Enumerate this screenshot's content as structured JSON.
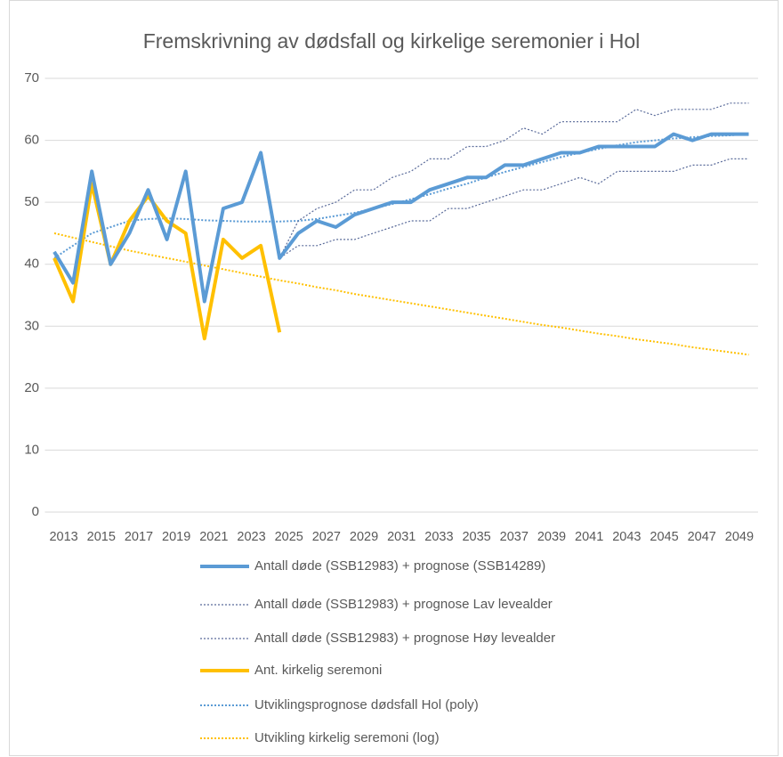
{
  "chart_data": {
    "type": "line",
    "title": "Fremskrivning av dødsfall og kirkelige seremonier i Hol",
    "categories": [
      "2013",
      null,
      "2015",
      null,
      "2017",
      null,
      "2019",
      null,
      "2021",
      null,
      "2023",
      null,
      "2025",
      null,
      "2027",
      null,
      "2029",
      null,
      "2031",
      null,
      "2033",
      null,
      "2035",
      null,
      "2037",
      null,
      "2039",
      null,
      "2041",
      null,
      "2043",
      null,
      "2045",
      null,
      "2047",
      null,
      "2049",
      null
    ],
    "ylim": [
      0,
      70
    ],
    "yticks": [
      0,
      10,
      20,
      30,
      40,
      50,
      60,
      70
    ],
    "grid": true,
    "legend": "bottom",
    "series": [
      {
        "name": "Antall døde (SSB12983) + prognose (SSB14289)",
        "color": "#5b9bd5",
        "line_style": "solid",
        "values": [
          42,
          37,
          55,
          40,
          45,
          52,
          44,
          55,
          34,
          49,
          50,
          58,
          41,
          45,
          47,
          46,
          48,
          49,
          50,
          50,
          52,
          53,
          54,
          54,
          56,
          56,
          57,
          58,
          58,
          59,
          59,
          59,
          59,
          61,
          60,
          61,
          61,
          61
        ]
      },
      {
        "name": "Antall døde (SSB12983) + prognose Lav levealder",
        "color": "#5a6b9a",
        "line_style": "dotted",
        "values": [
          42,
          37,
          55,
          40,
          45,
          52,
          44,
          55,
          34,
          49,
          50,
          58,
          41,
          47,
          49,
          50,
          52,
          52,
          54,
          55,
          57,
          57,
          59,
          59,
          60,
          62,
          61,
          63,
          63,
          63,
          63,
          65,
          64,
          65,
          65,
          65,
          66,
          66
        ]
      },
      {
        "name": "Antall døde (SSB12983) + prognose Høy levealder",
        "color": "#5a6b9a",
        "line_style": "dotted",
        "values": [
          42,
          37,
          55,
          40,
          45,
          52,
          44,
          55,
          34,
          49,
          50,
          58,
          41,
          43,
          43,
          44,
          44,
          45,
          46,
          47,
          47,
          49,
          49,
          50,
          51,
          52,
          52,
          53,
          54,
          53,
          55,
          55,
          55,
          55,
          56,
          56,
          57,
          57
        ]
      },
      {
        "name": "Ant. kirkelig seremoni",
        "color": "#ffc000",
        "line_style": "solid",
        "values": [
          41,
          34,
          53,
          40,
          47,
          51,
          47,
          45,
          28,
          44,
          41,
          43,
          29,
          null,
          null,
          null,
          null,
          null,
          null,
          null,
          null,
          null,
          null,
          null,
          null,
          null,
          null,
          null,
          null,
          null,
          null,
          null,
          null,
          null,
          null,
          null,
          null,
          null
        ]
      },
      {
        "name": "Utviklingsprognose dødsfall Hol (poly)",
        "color": "#5b9bd5",
        "line_style": "dotted",
        "values": [
          41,
          43,
          45,
          46,
          47,
          47.3,
          47.4,
          47.3,
          47.1,
          47,
          46.9,
          46.9,
          46.9,
          47,
          47.3,
          47.8,
          48.3,
          49,
          49.7,
          50.5,
          51.3,
          52.2,
          53,
          54,
          54.9,
          55.7,
          56.5,
          57.3,
          58,
          58.6,
          59.2,
          59.7,
          60,
          60.3,
          60.5,
          60.7,
          60.8,
          61
        ]
      },
      {
        "name": "Utvikling kirkelig seremoni (log)",
        "color": "#ffc000",
        "line_style": "dotted",
        "values": [
          45,
          44.3,
          43.6,
          42.9,
          42.2,
          41.6,
          41,
          40.4,
          39.8,
          39.2,
          38.6,
          38,
          37.4,
          36.9,
          36.3,
          35.8,
          35.2,
          34.7,
          34.2,
          33.7,
          33.2,
          32.7,
          32.2,
          31.7,
          31.2,
          30.7,
          30.2,
          29.8,
          29.3,
          28.8,
          28.4,
          27.9,
          27.5,
          27.1,
          26.6,
          26.2,
          25.8,
          25.4
        ]
      }
    ]
  }
}
